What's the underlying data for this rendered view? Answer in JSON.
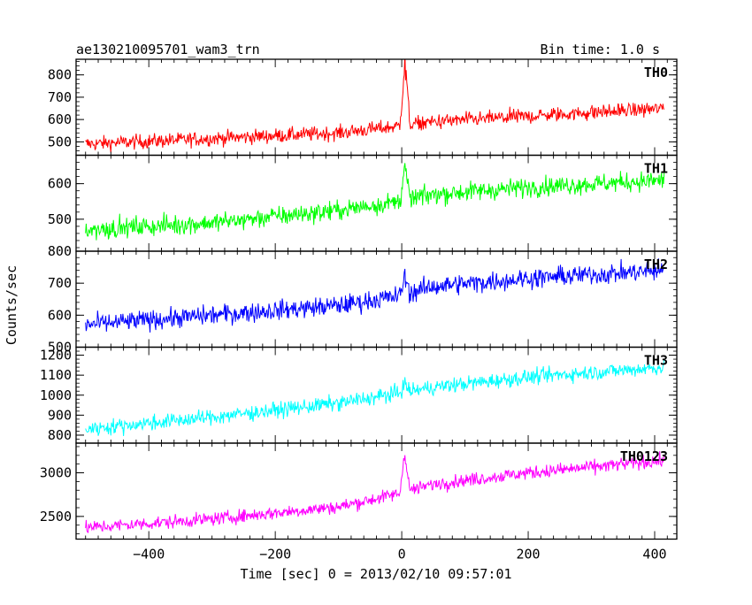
{
  "header": {
    "title": "ae130210095701_wam3_trn",
    "bin_time": "Bin time: 1.0 s"
  },
  "chart_data": {
    "type": "line",
    "xlabel": "Time [sec] 0 = 2013/02/10 09:57:01",
    "ylabel": "Counts/sec",
    "xlim": [
      -515,
      435
    ],
    "x_ticks": [
      -400,
      -200,
      0,
      200,
      400
    ],
    "grid": false,
    "panels": [
      {
        "name": "TH0",
        "color": "#ff0000",
        "ylim": [
          440,
          870
        ],
        "y_ticks": [
          500,
          600,
          700,
          800
        ],
        "trend": [
          [
            -500,
            490
          ],
          [
            -300,
            515
          ],
          [
            -100,
            540
          ],
          [
            -5,
            570
          ],
          [
            50,
            590
          ],
          [
            200,
            615
          ],
          [
            415,
            650
          ]
        ],
        "noise": 30,
        "spike": {
          "peak_x": 5,
          "peak_y": 880,
          "width": 8
        }
      },
      {
        "name": "TH1",
        "color": "#00ff00",
        "ylim": [
          410,
          680
        ],
        "y_ticks": [
          500,
          600
        ],
        "trend": [
          [
            -500,
            470
          ],
          [
            -300,
            490
          ],
          [
            -100,
            525
          ],
          [
            -5,
            550
          ],
          [
            50,
            570
          ],
          [
            200,
            590
          ],
          [
            415,
            610
          ]
        ],
        "noise": 25,
        "spike": {
          "peak_x": 5,
          "peak_y": 655,
          "width": 8
        }
      },
      {
        "name": "TH2",
        "color": "#0000ff",
        "ylim": [
          500,
          800
        ],
        "y_ticks": [
          500,
          600,
          700,
          800
        ],
        "trend": [
          [
            -500,
            570
          ],
          [
            -300,
            600
          ],
          [
            -100,
            630
          ],
          [
            -5,
            660
          ],
          [
            50,
            690
          ],
          [
            200,
            715
          ],
          [
            415,
            740
          ]
        ],
        "noise": 28,
        "spike": {
          "peak_x": 5,
          "peak_y": 725,
          "width": 8
        }
      },
      {
        "name": "TH3",
        "color": "#00ffff",
        "ylim": [
          760,
          1240
        ],
        "y_ticks": [
          800,
          900,
          1000,
          1100,
          1200
        ],
        "trend": [
          [
            -500,
            830
          ],
          [
            -300,
            890
          ],
          [
            -100,
            960
          ],
          [
            -5,
            1010
          ],
          [
            50,
            1040
          ],
          [
            200,
            1090
          ],
          [
            415,
            1140
          ]
        ],
        "noise": 35,
        "spike": {
          "peak_x": 5,
          "peak_y": 1060,
          "width": 8
        }
      },
      {
        "name": "TH0123",
        "color": "#ff00ff",
        "ylim": [
          2240,
          3340
        ],
        "y_ticks": [
          2500,
          3000
        ],
        "trend": [
          [
            -500,
            2370
          ],
          [
            -300,
            2470
          ],
          [
            -100,
            2610
          ],
          [
            -5,
            2760
          ],
          [
            50,
            2870
          ],
          [
            200,
            3000
          ],
          [
            415,
            3140
          ]
        ],
        "noise": 70,
        "spike": {
          "peak_x": 5,
          "peak_y": 3300,
          "width": 8
        }
      }
    ]
  }
}
